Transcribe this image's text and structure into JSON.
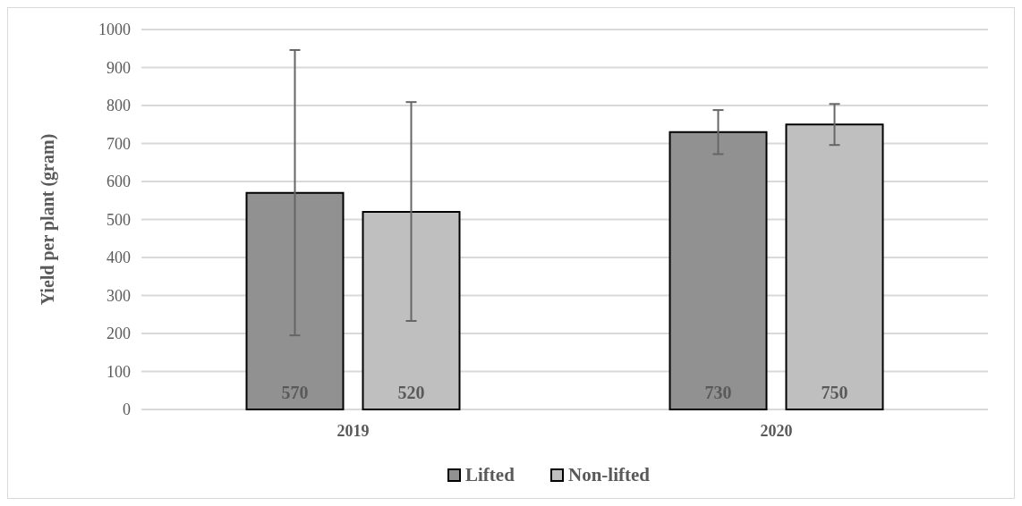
{
  "chart_data": {
    "type": "bar",
    "ylabel": "Yield per plant (gram)",
    "categories": [
      "2019",
      "2020"
    ],
    "series": [
      {
        "name": "Lifted",
        "color": "#919191",
        "values": [
          570,
          730
        ],
        "errors": [
          [
            195,
            946
          ],
          [
            672,
            788
          ]
        ]
      },
      {
        "name": "Non-lifted",
        "color": "#bfbfbf",
        "values": [
          520,
          750
        ],
        "errors": [
          [
            233,
            809
          ],
          [
            696,
            804
          ]
        ]
      }
    ],
    "ylim": [
      0,
      1000
    ],
    "yticks": [
      0,
      100,
      200,
      300,
      400,
      500,
      600,
      700,
      800,
      900,
      1000
    ],
    "grid": "y",
    "legend": "bottom",
    "data_labels": true
  }
}
